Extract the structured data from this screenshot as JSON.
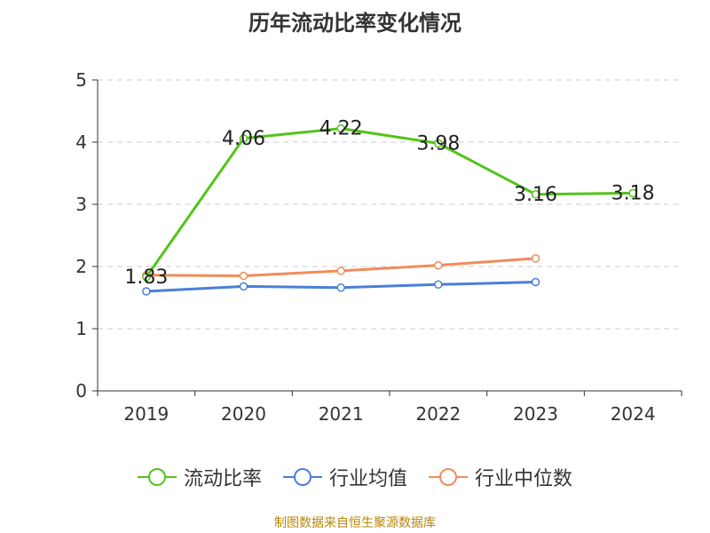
{
  "chart_data": {
    "type": "line",
    "title": "历年流动比率变化情况",
    "categories": [
      "2019",
      "2020",
      "2021",
      "2022",
      "2023",
      "2024"
    ],
    "ylim": [
      0,
      5
    ],
    "yticks": [
      "0",
      "1",
      "2",
      "3",
      "4",
      "5"
    ],
    "grid": true,
    "legend_position": "bottom",
    "series": [
      {
        "name": "流动比率",
        "color": "#52c41a",
        "values": [
          1.83,
          4.06,
          4.22,
          3.98,
          3.16,
          3.18
        ],
        "labels": [
          "1.83",
          "4.06",
          "4.22",
          "3.98",
          "3.16",
          "3.18"
        ]
      },
      {
        "name": "行业均值",
        "color": "#4a7fd9",
        "values": [
          1.6,
          1.68,
          1.66,
          1.71,
          1.75,
          null
        ]
      },
      {
        "name": "行业中位数",
        "color": "#f28c5a",
        "values": [
          1.86,
          1.85,
          1.93,
          2.02,
          2.13,
          null
        ]
      }
    ]
  },
  "footer": "制图数据来自恒生聚源数据库"
}
